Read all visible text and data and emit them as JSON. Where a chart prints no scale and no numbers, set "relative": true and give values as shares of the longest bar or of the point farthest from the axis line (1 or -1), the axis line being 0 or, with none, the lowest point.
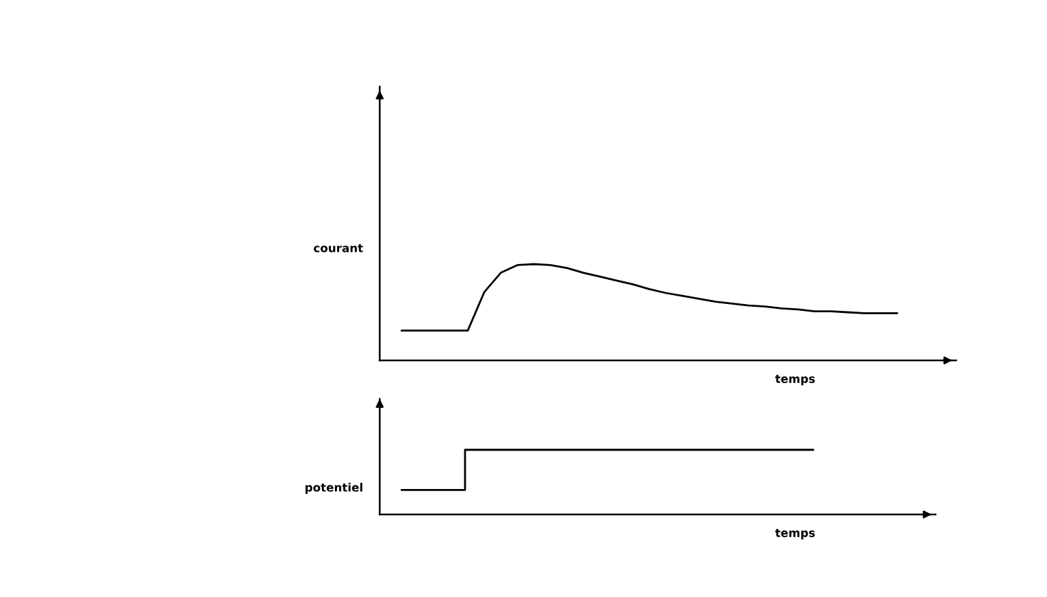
{
  "chart_data": [
    {
      "type": "line",
      "relative": true,
      "xlabel": "temps",
      "ylabel": "courant",
      "grid": false,
      "legend": false,
      "marker": "none",
      "line_style": "solid",
      "categories": [
        null,
        null,
        null,
        null,
        null,
        null,
        null,
        null,
        null,
        null,
        null,
        null,
        null,
        null,
        null,
        null,
        null,
        null,
        null,
        null,
        null,
        null,
        null,
        null,
        null,
        null,
        null,
        null,
        null,
        null,
        null
      ],
      "series": [
        {
          "color": "#000000",
          "values": [
            0.31,
            0.31,
            0.31,
            0.31,
            0.31,
            0.71,
            0.91,
            0.99,
            1.0,
            0.99,
            0.96,
            0.91,
            0.87,
            0.83,
            0.79,
            0.74,
            0.7,
            0.67,
            0.64,
            0.61,
            0.59,
            0.57,
            0.56,
            0.54,
            0.53,
            0.51,
            0.51,
            0.5,
            0.49,
            0.49,
            0.49
          ]
        }
      ]
    },
    {
      "type": "step",
      "relative": true,
      "xlabel": "temps",
      "ylabel": "potentiel",
      "grid": false,
      "legend": false,
      "marker": "none",
      "line_style": "solid",
      "categories": [
        null,
        null,
        null,
        null,
        null,
        null,
        null,
        null,
        null,
        null,
        null,
        null,
        null,
        null
      ],
      "series": [
        {
          "color": "#000000",
          "values": [
            0.38,
            0.38,
            1.0,
            1.0,
            1.0,
            1.0,
            1.0,
            1.0,
            1.0,
            1.0,
            1.0,
            1.0,
            1.0,
            1.0
          ]
        }
      ]
    }
  ]
}
